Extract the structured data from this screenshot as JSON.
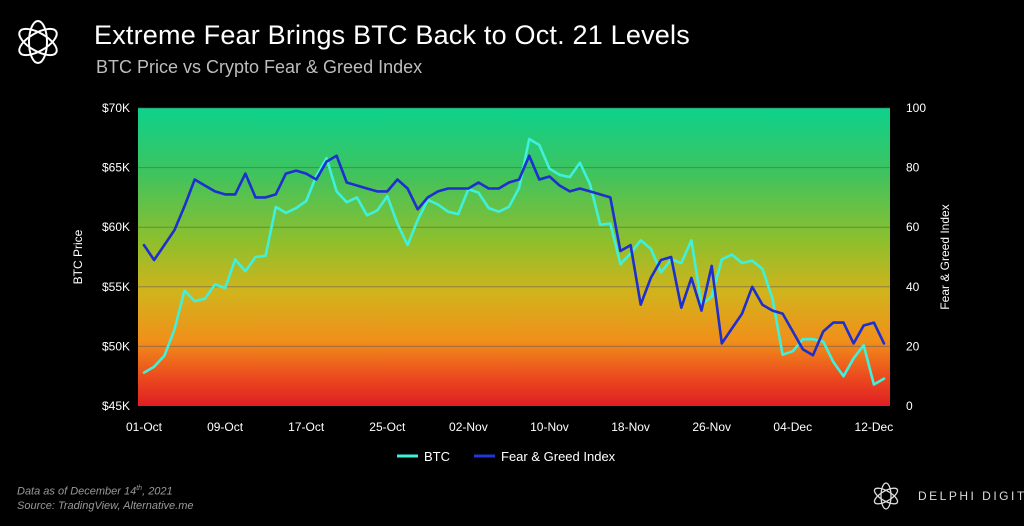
{
  "header": {
    "title": "Extreme Fear Brings BTC Back to Oct. 21 Levels",
    "subtitle": "BTC Price vs Crypto Fear & Greed Index"
  },
  "footnote": {
    "line1_prefix": "Data as of December 14",
    "line1_sup": "th",
    "line1_suffix": ", 2021",
    "line2": "Source:  TradingView, Alternative.me"
  },
  "brand": {
    "name": "DELPHI DIGITAL",
    "logo_icon": "delphi-flower-logo-icon"
  },
  "chart_data": {
    "type": "line",
    "x": [
      "01-Oct",
      "02-Oct",
      "03-Oct",
      "04-Oct",
      "05-Oct",
      "06-Oct",
      "07-Oct",
      "08-Oct",
      "09-Oct",
      "10-Oct",
      "11-Oct",
      "12-Oct",
      "13-Oct",
      "14-Oct",
      "15-Oct",
      "16-Oct",
      "17-Oct",
      "18-Oct",
      "19-Oct",
      "20-Oct",
      "21-Oct",
      "22-Oct",
      "23-Oct",
      "24-Oct",
      "25-Oct",
      "26-Oct",
      "27-Oct",
      "28-Oct",
      "29-Oct",
      "30-Oct",
      "31-Oct",
      "01-Nov",
      "02-Nov",
      "03-Nov",
      "04-Nov",
      "05-Nov",
      "06-Nov",
      "07-Nov",
      "08-Nov",
      "09-Nov",
      "10-Nov",
      "11-Nov",
      "12-Nov",
      "13-Nov",
      "14-Nov",
      "15-Nov",
      "16-Nov",
      "17-Nov",
      "18-Nov",
      "19-Nov",
      "20-Nov",
      "21-Nov",
      "22-Nov",
      "23-Nov",
      "24-Nov",
      "25-Nov",
      "26-Nov",
      "27-Nov",
      "28-Nov",
      "29-Nov",
      "30-Nov",
      "01-Dec",
      "02-Dec",
      "03-Dec",
      "04-Dec",
      "05-Dec",
      "06-Dec",
      "07-Dec",
      "08-Dec",
      "09-Dec",
      "10-Dec",
      "11-Dec",
      "12-Dec",
      "13-Dec"
    ],
    "xticks": [
      "01-Oct",
      "09-Oct",
      "17-Oct",
      "25-Oct",
      "02-Nov",
      "10-Nov",
      "18-Nov",
      "26-Nov",
      "04-Dec",
      "12-Dec"
    ],
    "series": [
      {
        "name": "BTC",
        "axis": "left",
        "color": "#3ff0dc",
        "values": [
          47800,
          48300,
          49200,
          51400,
          54700,
          53800,
          54000,
          55200,
          54900,
          57300,
          56300,
          57500,
          57600,
          61700,
          61200,
          61600,
          62200,
          64300,
          65800,
          63000,
          62100,
          62500,
          61000,
          61400,
          62600,
          60300,
          58500,
          60600,
          62300,
          61900,
          61300,
          61100,
          63200,
          62900,
          61600,
          61300,
          61700,
          63300,
          67400,
          66900,
          64900,
          64400,
          64200,
          65400,
          63600,
          60200,
          60300,
          56900,
          57800,
          58900,
          58200,
          56200,
          57300,
          57000,
          58900,
          53500,
          54200,
          57300,
          57700,
          57000,
          57200,
          56500,
          54000,
          49300,
          49600,
          50600,
          50600,
          50400,
          48700,
          47500,
          49000,
          50100,
          46800,
          47300
        ]
      },
      {
        "name": "Fear & Greed Index",
        "axis": "right",
        "color": "#1f2fcf",
        "values": [
          54,
          49,
          54,
          59,
          67,
          76,
          74,
          72,
          71,
          71,
          78,
          70,
          70,
          71,
          78,
          79,
          78,
          76,
          82,
          84,
          75,
          74,
          73,
          72,
          72,
          76,
          73,
          66,
          70,
          72,
          73,
          73,
          73,
          75,
          73,
          73,
          75,
          76,
          84,
          76,
          77,
          74,
          72,
          73,
          72,
          71,
          70,
          52,
          54,
          34,
          43,
          49,
          50,
          33,
          43,
          32,
          47,
          21,
          26,
          31,
          40,
          34,
          32,
          31,
          25,
          19,
          17,
          25,
          28,
          28,
          21,
          27,
          28,
          21
        ]
      }
    ],
    "y_left": {
      "label": "BTC Price",
      "ticks": [
        "$45K",
        "$50K",
        "$55K",
        "$60K",
        "$65K",
        "$70K"
      ],
      "range": [
        45000,
        70000
      ]
    },
    "y_right": {
      "label": "Fear & Greed Index",
      "ticks": [
        "0",
        "20",
        "40",
        "60",
        "80",
        "100"
      ],
      "range": [
        0,
        100
      ]
    },
    "background": "vertical gradient green (greed, top) to red (fear, bottom)",
    "grid": true,
    "legend_position": "bottom-center"
  }
}
